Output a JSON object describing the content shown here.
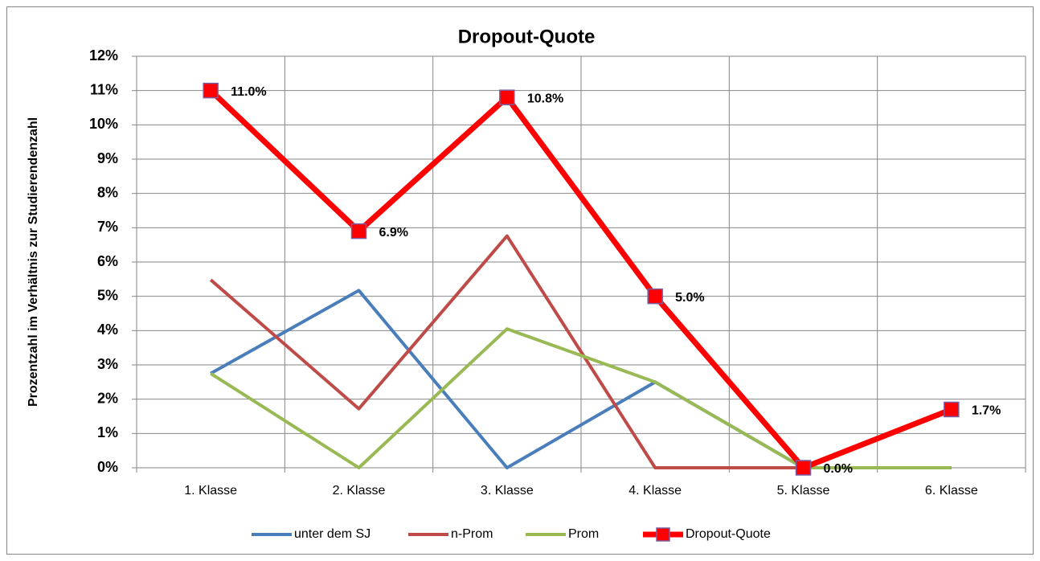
{
  "chart_data": {
    "type": "line",
    "title": "Dropout-Quote",
    "y_label": "Prozentzahl im Verhältnis zur Studierendenzahl",
    "categories": [
      "1. Klasse",
      "2. Klasse",
      "3. Klasse",
      "4. Klasse",
      "5. Klasse",
      "6. Klasse"
    ],
    "series": [
      {
        "name": "unter dem SJ",
        "color": "#4a7ebb",
        "values": [
          2.75,
          5.17,
          0,
          2.5,
          0,
          0
        ]
      },
      {
        "name": "n-Prom",
        "color": "#be4b48",
        "values": [
          5.48,
          1.72,
          6.76,
          0,
          0,
          0
        ]
      },
      {
        "name": "Prom",
        "color": "#98b954",
        "values": [
          2.75,
          0,
          4.05,
          2.5,
          0,
          0
        ]
      },
      {
        "name": "Dropout-Quote",
        "color": "#ff0000",
        "marker": "square",
        "values": [
          11.0,
          6.9,
          10.8,
          5.0,
          0.0,
          1.7
        ],
        "value_labels": [
          "11.0%",
          "6.9%",
          "10.8%",
          "5.0%",
          "0.0%",
          "1.7%"
        ]
      }
    ],
    "ylim": [
      0,
      12
    ],
    "yticks": [
      {
        "value": 0,
        "label": "0%"
      },
      {
        "value": 1,
        "label": "1%"
      },
      {
        "value": 2,
        "label": "2%"
      },
      {
        "value": 3,
        "label": "3%"
      },
      {
        "value": 4,
        "label": "4%"
      },
      {
        "value": 5,
        "label": "5%"
      },
      {
        "value": 6,
        "label": "6%"
      },
      {
        "value": 7,
        "label": "7%"
      },
      {
        "value": 8,
        "label": "8%"
      },
      {
        "value": 9,
        "label": "9%"
      },
      {
        "value": 10,
        "label": "10%"
      },
      {
        "value": 11,
        "label": "11%"
      },
      {
        "value": 12,
        "label": "12%"
      }
    ],
    "grid": true,
    "legend": "bottom"
  }
}
